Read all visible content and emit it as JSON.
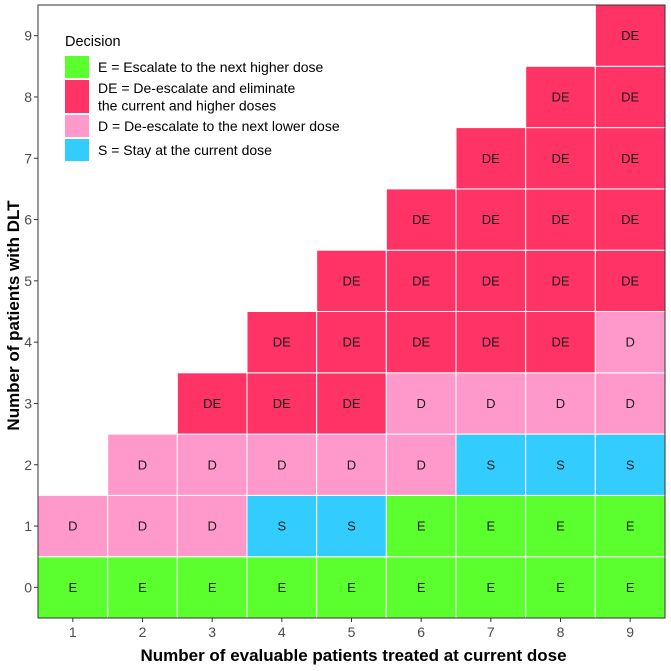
{
  "chart_data": {
    "type": "heatmap",
    "xlabel": "Number of evaluable patients treated at current dose",
    "ylabel": "Number of patients with DLT",
    "x_ticks": [
      1,
      2,
      3,
      4,
      5,
      6,
      7,
      8,
      9
    ],
    "y_ticks": [
      0,
      1,
      2,
      3,
      4,
      5,
      6,
      7,
      8,
      9
    ],
    "xlim": [
      0.5,
      9.5
    ],
    "ylim": [
      -0.5,
      9.5
    ],
    "legend": {
      "title": "Decision",
      "position": "top-left",
      "entries": [
        {
          "code": "E",
          "lines": [
            "E = Escalate to the next higher dose"
          ],
          "color": "#5CFF2E"
        },
        {
          "code": "DE",
          "lines": [
            "DE = De-escalate and eliminate",
            " the current and higher doses"
          ],
          "color": "#FF3366"
        },
        {
          "code": "D",
          "lines": [
            "D = De-escalate to the next lower dose"
          ],
          "color": "#FF99CC"
        },
        {
          "code": "S",
          "lines": [
            "S = Stay at the current dose"
          ],
          "color": "#33CCFF"
        }
      ]
    },
    "grid": {
      "1": [
        "E",
        "D"
      ],
      "2": [
        "E",
        "D",
        "D"
      ],
      "3": [
        "E",
        "D",
        "D",
        "DE"
      ],
      "4": [
        "E",
        "S",
        "D",
        "DE",
        "DE"
      ],
      "5": [
        "E",
        "S",
        "D",
        "DE",
        "DE",
        "DE"
      ],
      "6": [
        "E",
        "E",
        "D",
        "D",
        "DE",
        "DE",
        "DE"
      ],
      "7": [
        "E",
        "E",
        "S",
        "D",
        "DE",
        "DE",
        "DE",
        "DE"
      ],
      "8": [
        "E",
        "E",
        "S",
        "D",
        "DE",
        "DE",
        "DE",
        "DE",
        "DE"
      ],
      "9": [
        "E",
        "E",
        "S",
        "D",
        "D",
        "DE",
        "DE",
        "DE",
        "DE",
        "DE"
      ]
    }
  }
}
